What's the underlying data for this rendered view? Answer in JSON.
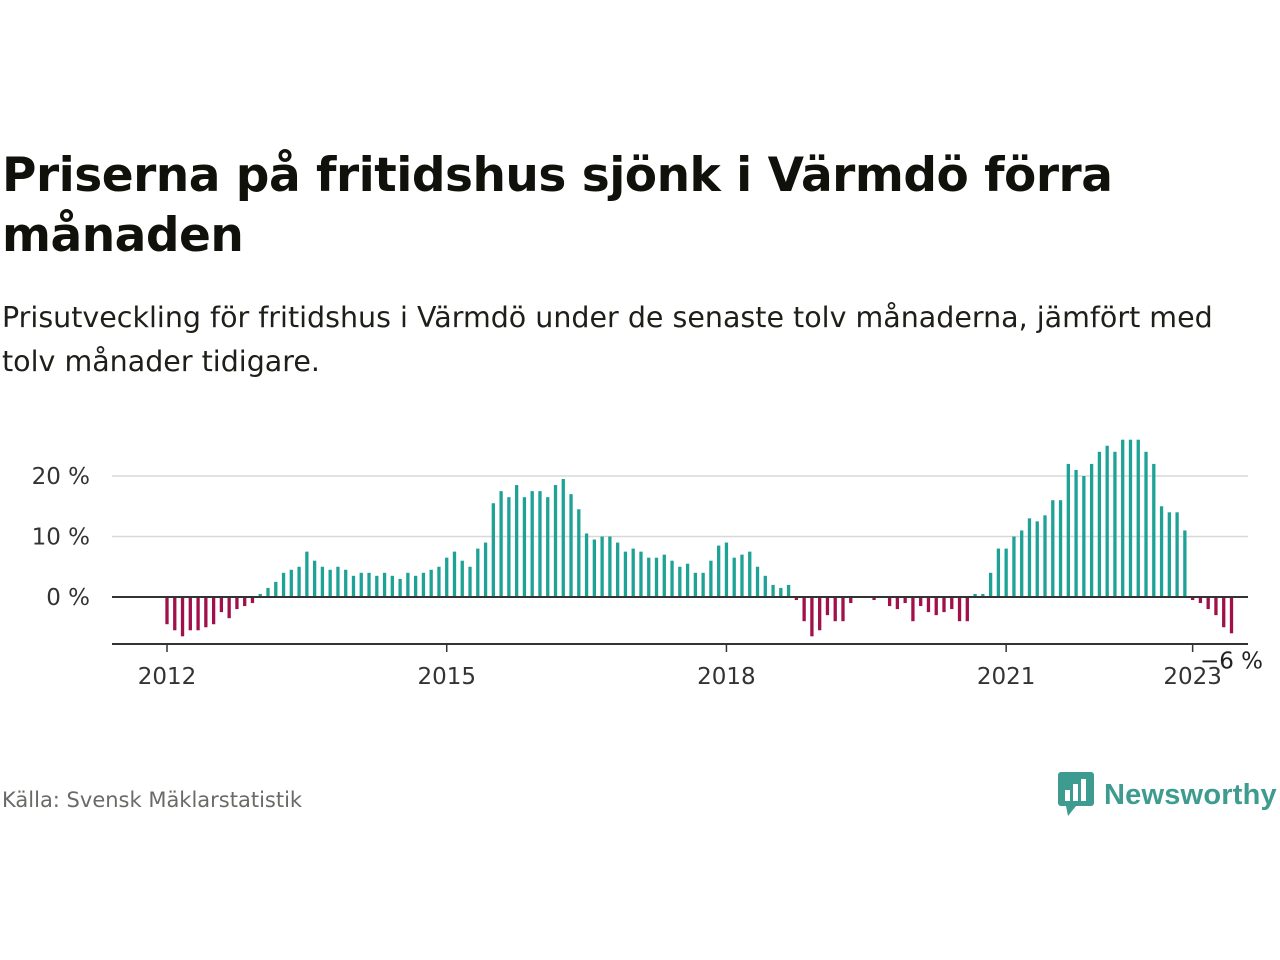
{
  "title": "Priserna på fritidshus sjönk i Värmdö förra månaden",
  "subtitle": "Prisutveckling för fritidshus i Värmdö under de senaste tolv månaderna, jämfört med tolv månader tidigare.",
  "source": "Källa: Svensk Mäklarstatistik",
  "brand": "Newsworthy",
  "colors": {
    "positive": "#1fa296",
    "negative": "#a0104a",
    "grid": "#d8d8d8",
    "axis": "#333333",
    "brand": "#3d9b8f"
  },
  "chart_data": {
    "type": "bar",
    "start": "2012-01",
    "values": [
      -4.5,
      -5.5,
      -6.5,
      -5.5,
      -5.5,
      -5,
      -4.5,
      -2.5,
      -3.5,
      -2,
      -1.5,
      -1,
      0.5,
      1.5,
      2.5,
      4,
      4.5,
      5,
      7.5,
      6,
      5,
      4.5,
      5,
      4.5,
      3.5,
      4,
      4,
      3.5,
      4,
      3.5,
      3,
      4,
      3.5,
      4,
      4.5,
      5,
      6.5,
      7.5,
      6,
      5,
      8,
      9,
      15.5,
      17.5,
      16.5,
      18.5,
      16.5,
      17.5,
      17.5,
      16.5,
      18.5,
      19.5,
      17,
      14.5,
      10.5,
      9.5,
      10,
      10,
      9,
      7.5,
      8,
      7.5,
      6.5,
      6.5,
      7,
      6,
      5,
      5.5,
      4,
      4,
      6,
      8.5,
      9,
      6.5,
      7,
      7.5,
      5,
      3.5,
      2,
      1.5,
      2,
      -0.5,
      -4,
      -6.5,
      -5.5,
      -3,
      -4,
      -4,
      -1,
      0,
      0,
      -0.5,
      0,
      -1.5,
      -2,
      -1,
      -4,
      -1.5,
      -2.5,
      -3,
      -2.5,
      -2,
      -4,
      -4,
      0.5,
      0.5,
      4,
      8,
      8,
      10,
      11,
      13,
      12.5,
      13.5,
      16,
      16,
      22,
      21,
      20,
      22,
      24,
      25,
      24,
      26,
      26,
      26,
      24,
      22,
      15,
      14,
      14,
      11,
      -0.5,
      -1,
      -2,
      -3,
      -5,
      -6
    ],
    "x_ticks": [
      "2012",
      "2015",
      "2018",
      "2021",
      "2023"
    ],
    "x_tick_index": [
      0,
      36,
      72,
      108,
      132
    ],
    "y_ticks": [
      0,
      10,
      20
    ],
    "y_tick_labels": [
      "0 %",
      "10 %",
      "20 %"
    ],
    "ylim": [
      -8,
      26
    ],
    "last_label": "−6 %",
    "grid": true,
    "unit": "%"
  }
}
